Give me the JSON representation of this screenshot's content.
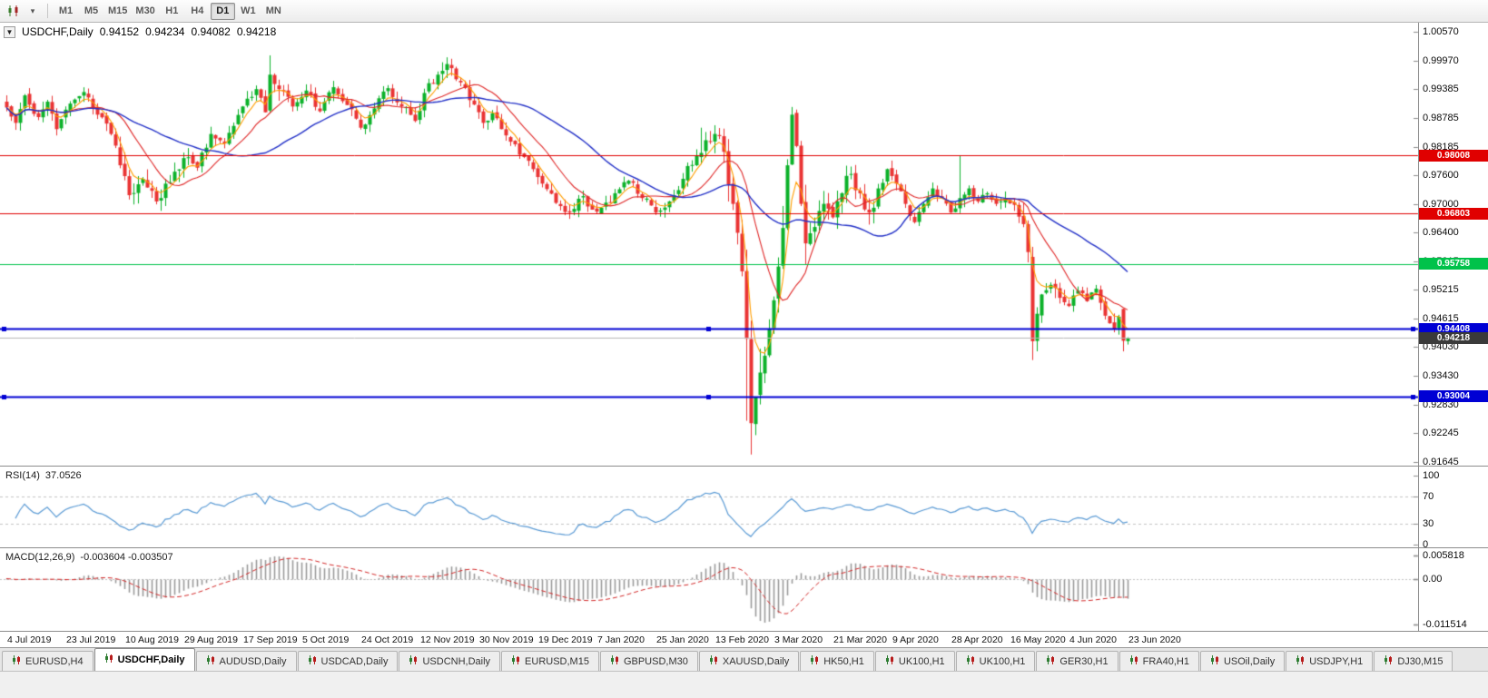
{
  "toolbar": {
    "timeframes": [
      "M1",
      "M5",
      "M15",
      "M30",
      "H1",
      "H4",
      "D1",
      "W1",
      "MN"
    ],
    "active_timeframe": "D1"
  },
  "chart": {
    "symbol_label": "USDCHF,Daily",
    "ohlc": [
      "0.94152",
      "0.94234",
      "0.94082",
      "0.94218"
    ]
  },
  "indicators": {
    "rsi_name": "RSI(14)",
    "rsi_value": "37.0526",
    "macd_name": "MACD(12,26,9)",
    "macd_values": "-0.003604 -0.003507"
  },
  "tabs": {
    "items": [
      "EURUSD,H4",
      "USDCHF,Daily",
      "AUDUSD,Daily",
      "USDCAD,Daily",
      "USDCNH,Daily",
      "EURUSD,M15",
      "GBPUSD,M30",
      "XAUUSD,Daily",
      "HK50,H1",
      "UK100,H1",
      "UK100,H1",
      "GER30,H1",
      "FRA40,H1",
      "USOil,Daily",
      "USDJPY,H1",
      "DJ30,M15"
    ],
    "active_index": 1
  },
  "chart_data": {
    "type": "candlestick",
    "symbol": "USDCHF",
    "timeframe": "Daily",
    "x_axis_dates": [
      "4 Jul 2019",
      "23 Jul 2019",
      "10 Aug 2019",
      "29 Aug 2019",
      "17 Sep 2019",
      "5 Oct 2019",
      "24 Oct 2019",
      "12 Nov 2019",
      "30 Nov 2019",
      "19 Dec 2019",
      "7 Jan 2020",
      "25 Jan 2020",
      "13 Feb 2020",
      "3 Mar 2020",
      "21 Mar 2020",
      "9 Apr 2020",
      "28 Apr 2020",
      "16 May 2020",
      "4 Jun 2020",
      "23 Jun 2020"
    ],
    "price_axis_labels": [
      "1.00570",
      "0.99970",
      "0.99385",
      "0.98785",
      "0.98185",
      "0.97600",
      "0.97000",
      "0.96400",
      "0.95815",
      "0.95215",
      "0.94615",
      "0.94030",
      "0.93430",
      "0.92830",
      "0.92245",
      "0.91645"
    ],
    "price_max": 1.0057,
    "price_min": 0.91645,
    "candle_count": 248,
    "noise_seed": 20200630,
    "close_anchors": [
      [
        0,
        0.99
      ],
      [
        2,
        0.9868
      ],
      [
        4,
        0.9925
      ],
      [
        7,
        0.988
      ],
      [
        9,
        0.9912
      ],
      [
        11,
        0.9855
      ],
      [
        14,
        0.9908
      ],
      [
        17,
        0.9932
      ],
      [
        20,
        0.9885
      ],
      [
        23,
        0.9845
      ],
      [
        25,
        0.978
      ],
      [
        27,
        0.9718
      ],
      [
        30,
        0.9752
      ],
      [
        33,
        0.9705
      ],
      [
        36,
        0.9745
      ],
      [
        39,
        0.9795
      ],
      [
        42,
        0.9775
      ],
      [
        45,
        0.9845
      ],
      [
        48,
        0.9825
      ],
      [
        52,
        0.9902
      ],
      [
        55,
        0.9938
      ],
      [
        57,
        0.989
      ],
      [
        58,
        0.9968
      ],
      [
        60,
        0.9938
      ],
      [
        63,
        0.9902
      ],
      [
        66,
        0.9935
      ],
      [
        69,
        0.9892
      ],
      [
        72,
        0.9942
      ],
      [
        75,
        0.9905
      ],
      [
        78,
        0.9858
      ],
      [
        81,
        0.9898
      ],
      [
        84,
        0.994
      ],
      [
        87,
        0.9902
      ],
      [
        90,
        0.9872
      ],
      [
        92,
        0.993
      ],
      [
        95,
        0.9968
      ],
      [
        97,
        0.999
      ],
      [
        100,
        0.9952
      ],
      [
        103,
        0.9906
      ],
      [
        105,
        0.9868
      ],
      [
        107,
        0.9888
      ],
      [
        110,
        0.9842
      ],
      [
        113,
        0.9802
      ],
      [
        116,
        0.9772
      ],
      [
        118,
        0.9742
      ],
      [
        121,
        0.9702
      ],
      [
        124,
        0.9682
      ],
      [
        127,
        0.9716
      ],
      [
        129,
        0.9688
      ],
      [
        131,
        0.9692
      ],
      [
        134,
        0.9722
      ],
      [
        137,
        0.9748
      ],
      [
        140,
        0.9712
      ],
      [
        143,
        0.9682
      ],
      [
        146,
        0.9705
      ],
      [
        149,
        0.9752
      ],
      [
        152,
        0.98
      ],
      [
        154,
        0.9832
      ],
      [
        156,
        0.9845
      ],
      [
        158,
        0.9808
      ],
      [
        160,
        0.97
      ],
      [
        161,
        0.964
      ],
      [
        162,
        0.956
      ],
      [
        163,
        0.942
      ],
      [
        164,
        0.9245
      ],
      [
        165,
        0.93
      ],
      [
        166,
        0.935
      ],
      [
        167,
        0.9385
      ],
      [
        168,
        0.944
      ],
      [
        169,
        0.95
      ],
      [
        170,
        0.957
      ],
      [
        171,
        0.965
      ],
      [
        172,
        0.978
      ],
      [
        173,
        0.9885
      ],
      [
        174,
        0.982
      ],
      [
        175,
        0.97
      ],
      [
        176,
        0.9618
      ],
      [
        178,
        0.9652
      ],
      [
        180,
        0.97
      ],
      [
        182,
        0.9672
      ],
      [
        184,
        0.9722
      ],
      [
        186,
        0.9762
      ],
      [
        188,
        0.9722
      ],
      [
        190,
        0.9682
      ],
      [
        192,
        0.9732
      ],
      [
        194,
        0.9772
      ],
      [
        196,
        0.9742
      ],
      [
        198,
        0.97
      ],
      [
        200,
        0.9662
      ],
      [
        202,
        0.97
      ],
      [
        204,
        0.9732
      ],
      [
        206,
        0.9712
      ],
      [
        208,
        0.9682
      ],
      [
        210,
        0.9712
      ],
      [
        212,
        0.9732
      ],
      [
        214,
        0.9705
      ],
      [
        216,
        0.9722
      ],
      [
        218,
        0.97
      ],
      [
        220,
        0.9712
      ],
      [
        222,
        0.9698
      ],
      [
        224,
        0.9658
      ],
      [
        225,
        0.96
      ],
      [
        226,
        0.9415
      ],
      [
        227,
        0.9472
      ],
      [
        228,
        0.9512
      ],
      [
        230,
        0.9532
      ],
      [
        232,
        0.9505
      ],
      [
        234,
        0.9488
      ],
      [
        236,
        0.952
      ],
      [
        238,
        0.9498
      ],
      [
        240,
        0.9524
      ],
      [
        242,
        0.9468
      ],
      [
        244,
        0.944
      ],
      [
        245,
        0.9466
      ],
      [
        246,
        0.9416
      ],
      [
        247,
        0.94218
      ]
    ],
    "volatility_zones": [
      {
        "from": 24,
        "to": 40,
        "mult": 1.5
      },
      {
        "from": 58,
        "to": 60,
        "mult": 1.6
      },
      {
        "from": 95,
        "to": 99,
        "mult": 1.3
      },
      {
        "from": 150,
        "to": 158,
        "mult": 1.6
      },
      {
        "from": 159,
        "to": 176,
        "mult": 3.2
      },
      {
        "from": 177,
        "to": 192,
        "mult": 1.8
      },
      {
        "from": 223,
        "to": 231,
        "mult": 1.8
      },
      {
        "from": 243,
        "to": 246,
        "mult": 1.3
      }
    ],
    "candle_overrides": [
      {
        "i": 58,
        "h": 1.0008
      },
      {
        "i": 97,
        "h": 1.0004
      },
      {
        "i": 153,
        "h": 0.9858
      },
      {
        "i": 163,
        "l": 0.925
      },
      {
        "i": 164,
        "l": 0.918
      },
      {
        "i": 173,
        "h": 0.9901
      },
      {
        "i": 210,
        "h": 0.9799
      },
      {
        "i": 226,
        "o": 0.959,
        "l": 0.9376,
        "c": 0.9415
      },
      {
        "i": 246,
        "o": 0.9482,
        "l": 0.9394,
        "c": 0.9416
      },
      {
        "i": 247,
        "o": 0.94152,
        "h": 0.94234,
        "l": 0.94082,
        "c": 0.94218
      }
    ],
    "horizontal_lines": [
      {
        "price": 0.98008,
        "label": "0.98008",
        "color": "#e00000",
        "width": 1,
        "handles": false
      },
      {
        "price": 0.96803,
        "label": "0.96803",
        "color": "#e00000",
        "width": 1,
        "handles": false
      },
      {
        "price": 0.95758,
        "label": "0.95758",
        "color": "#00c24a",
        "width": 1,
        "handles": false
      },
      {
        "price": 0.94408,
        "label": "0.94408",
        "color": "#0000d4",
        "width": 2,
        "handles": true
      },
      {
        "price": 0.93004,
        "label": "0.93004",
        "color": "#0000d4",
        "width": 2,
        "handles": true
      }
    ],
    "current_price": {
      "value": 0.94218,
      "label": "0.94218",
      "line_color": "#b8b8b8",
      "tag_color": "#3a3a3a"
    },
    "moving_averages": [
      {
        "period": 5,
        "method": "ema",
        "color": "#ff9e00"
      },
      {
        "period": 13,
        "method": "sma",
        "color": "#e02828"
      },
      {
        "period": 34,
        "method": "sma",
        "color": "#2432c8"
      }
    ],
    "rsi": {
      "period": 14,
      "value": 37.0526,
      "axis_labels": [
        "100",
        "70",
        "30",
        "0"
      ],
      "dashed_levels": [
        70,
        30
      ],
      "color": "#5b9bd5",
      "scale_max": 100,
      "scale_min": 0
    },
    "macd": {
      "fast": 12,
      "slow": 26,
      "signal": 9,
      "axis_labels": [
        "0.005818",
        "0.00",
        "-0.011514"
      ],
      "scale_max": 0.005818,
      "scale_min": -0.011514,
      "histogram_color": "#9a9a9a",
      "signal_color": "#d42a2a"
    },
    "colors": {
      "up_fill": "#0cb22a",
      "down_fill": "#ea3434",
      "background": "#ffffff",
      "axis_line": "#8c8c8c",
      "grid_dotted": "#c4c4c4"
    },
    "legend_position": "none",
    "grid": false
  }
}
